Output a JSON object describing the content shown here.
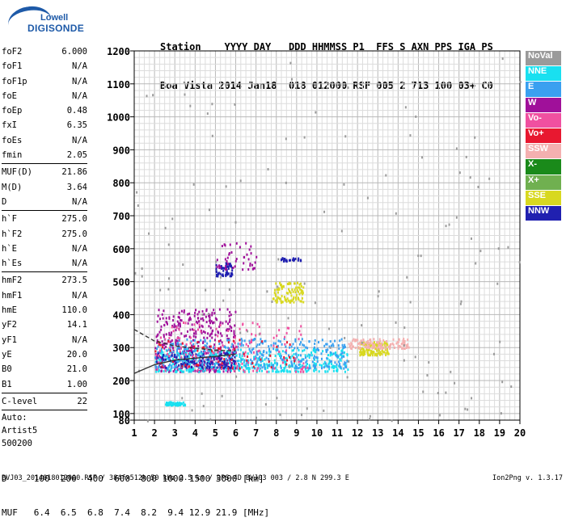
{
  "logo": {
    "line1": "Lowell",
    "line2": "DIGISONDE"
  },
  "header": {
    "row1": "Station    YYYY DAY   DDD HHMMSS P1  FFS S AXN PPS IGA PS",
    "row2": "Boa Vista 2014 Jan18  018 012000 RSF 005 2 713 100 03+ C0"
  },
  "params": [
    {
      "k": "foF2",
      "v": "6.000"
    },
    {
      "k": "foF1",
      "v": "N/A"
    },
    {
      "k": "foF1p",
      "v": "N/A"
    },
    {
      "k": "foE",
      "v": "N/A"
    },
    {
      "k": "foEp",
      "v": "0.48"
    },
    {
      "k": "fxI",
      "v": "6.35"
    },
    {
      "k": "foEs",
      "v": "N/A"
    },
    {
      "k": "fmin",
      "v": "2.05"
    },
    {
      "k": "MUF(D)",
      "v": "21.86"
    },
    {
      "k": "M(D)",
      "v": "3.64"
    },
    {
      "k": "D",
      "v": "N/A"
    },
    {
      "k": "h`F",
      "v": "275.0"
    },
    {
      "k": "h`F2",
      "v": "275.0"
    },
    {
      "k": "h`E",
      "v": "N/A"
    },
    {
      "k": "h`Es",
      "v": "N/A"
    },
    {
      "k": "hmF2",
      "v": "273.5"
    },
    {
      "k": "hmF1",
      "v": "N/A"
    },
    {
      "k": "hmE",
      "v": "110.0"
    },
    {
      "k": "yF2",
      "v": "14.1"
    },
    {
      "k": "yF1",
      "v": "N/A"
    },
    {
      "k": "yE",
      "v": "20.0"
    },
    {
      "k": "B0",
      "v": "21.0"
    },
    {
      "k": "B1",
      "v": "1.00"
    },
    {
      "k": "C-level",
      "v": "22"
    }
  ],
  "auto": {
    "l1": "Auto:",
    "l2": "Artist5",
    "l3": "500200"
  },
  "legend": [
    {
      "name": "NoVal",
      "color": "#9a9a9a"
    },
    {
      "name": "NNE",
      "color": "#19e0f0"
    },
    {
      "name": "E",
      "color": "#3aa0f0"
    },
    {
      "name": "W",
      "color": "#a0109a"
    },
    {
      "name": "Vo-",
      "color": "#f050a0"
    },
    {
      "name": "Vo+",
      "color": "#e81830"
    },
    {
      "name": "SSW",
      "color": "#f4b0b0"
    },
    {
      "name": "X-",
      "color": "#1a8a1a"
    },
    {
      "name": "X+",
      "color": "#70b050"
    },
    {
      "name": "SSE",
      "color": "#d8d820"
    },
    {
      "name": "NNW",
      "color": "#2020b0"
    }
  ],
  "bottom": {
    "d_row": "D     100  200  400  600  800 1000 1500 3000 [km]",
    "muf_row": "MUF   6.4  6.5  6.8  7.4  8.2  9.4 12.9 21.9 [MHz]"
  },
  "footer": "BVJ03_2014018012000.RSF / 384fx512h 50 kHz 2.5 km / DPS-4D BVJ03 003 / 2.8 N 299.3 E",
  "version": "Ion2Png v. 1.3.17",
  "chart_data": {
    "type": "scatter",
    "xlim": [
      1,
      20
    ],
    "ylim": [
      80,
      1200
    ],
    "xticks": [
      1,
      2,
      3,
      4,
      5,
      6,
      7,
      8,
      9,
      10,
      11,
      12,
      13,
      14,
      15,
      16,
      17,
      18,
      19,
      20
    ],
    "yticks": [
      80,
      100,
      200,
      300,
      400,
      500,
      600,
      700,
      800,
      900,
      1000,
      1100,
      1200
    ],
    "grid": true,
    "legend_position": "right",
    "clusters": [
      {
        "series": "W",
        "color": "#a0109a",
        "x": [
          2.0,
          6.0
        ],
        "y": [
          230,
          420
        ],
        "n": 420
      },
      {
        "series": "NNE",
        "color": "#19e0f0",
        "x": [
          2.0,
          11.5
        ],
        "y": [
          230,
          300
        ],
        "n": 420
      },
      {
        "series": "E",
        "color": "#3aa0f0",
        "x": [
          2.0,
          11.5
        ],
        "y": [
          240,
          330
        ],
        "n": 380
      },
      {
        "series": "NNW",
        "color": "#2020b0",
        "x": [
          2.0,
          6.0
        ],
        "y": [
          240,
          290
        ],
        "n": 120
      },
      {
        "series": "Vo-",
        "color": "#f050a0",
        "x": [
          2.0,
          9.5
        ],
        "y": [
          230,
          380
        ],
        "n": 130
      },
      {
        "series": "Vo+",
        "color": "#e81830",
        "x": [
          2.0,
          9.0
        ],
        "y": [
          240,
          330
        ],
        "n": 60
      },
      {
        "series": "SSE",
        "color": "#d8d820",
        "x": [
          12.0,
          13.5
        ],
        "y": [
          280,
          320
        ],
        "n": 130
      },
      {
        "series": "SSE",
        "color": "#d8d820",
        "x": [
          7.8,
          9.3
        ],
        "y": [
          440,
          500
        ],
        "n": 100
      },
      {
        "series": "SSW",
        "color": "#f4b0b0",
        "x": [
          11.5,
          14.5
        ],
        "y": [
          300,
          330
        ],
        "n": 120
      },
      {
        "series": "NNE",
        "color": "#19e0f0",
        "x": [
          2.5,
          3.5
        ],
        "y": [
          128,
          138
        ],
        "n": 60
      },
      {
        "series": "NNW",
        "color": "#2020b0",
        "x": [
          5.0,
          5.8
        ],
        "y": [
          520,
          560
        ],
        "n": 60
      },
      {
        "series": "NNW",
        "color": "#2020b0",
        "x": [
          8.2,
          9.2
        ],
        "y": [
          565,
          575
        ],
        "n": 25
      },
      {
        "series": "W",
        "color": "#a0109a",
        "x": [
          5.0,
          7.0
        ],
        "y": [
          540,
          620
        ],
        "n": 45
      },
      {
        "series": "NoVal",
        "color": "#9a9a9a",
        "x": [
          1.0,
          20.0
        ],
        "y": [
          80,
          1200
        ],
        "n": 140
      }
    ],
    "profile_dashed": [
      [
        1,
        355
      ],
      [
        2,
        320
      ],
      [
        3,
        305
      ],
      [
        4,
        298
      ],
      [
        5,
        292
      ],
      [
        6,
        290
      ]
    ],
    "profile_solid": [
      [
        1,
        222
      ],
      [
        2,
        248
      ],
      [
        3,
        262
      ],
      [
        4,
        268
      ],
      [
        5,
        273
      ],
      [
        6,
        280
      ]
    ]
  }
}
